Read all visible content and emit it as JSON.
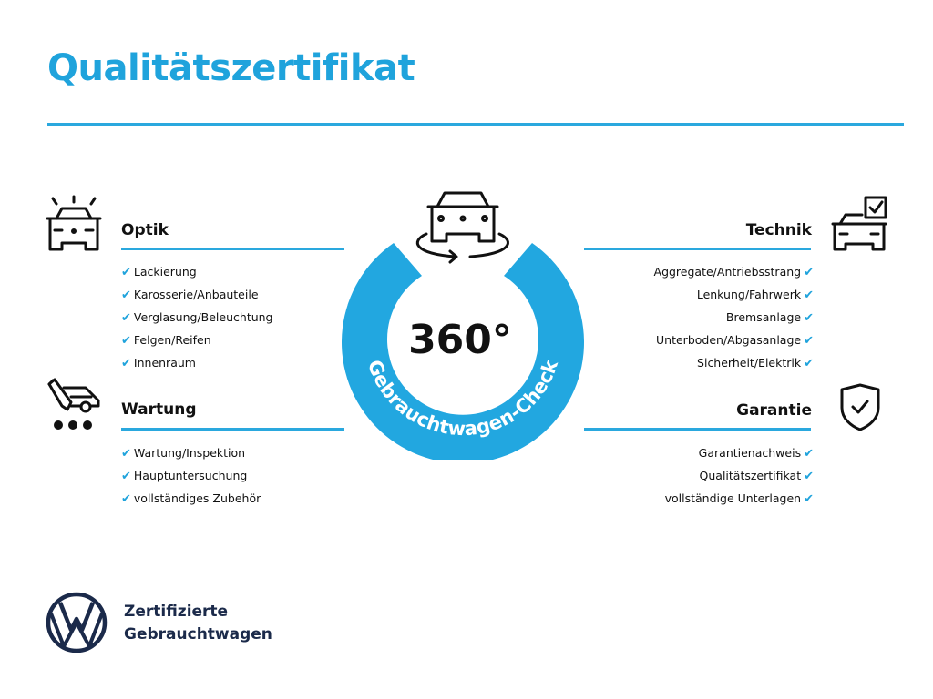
{
  "title": "Qualitätszertifikat",
  "badge": {
    "degrees": "360°",
    "label": "Gebrauchtwagen-Check",
    "color": "#22a7e0"
  },
  "sections": {
    "optik": {
      "title": "Optik",
      "icon": "car-lights-icon",
      "items": [
        "Lackierung",
        "Karosserie/Anbauteile",
        "Verglasung/Beleuchtung",
        "Felgen/Reifen",
        "Innenraum"
      ]
    },
    "wartung": {
      "title": "Wartung",
      "icon": "car-service-icon",
      "items": [
        "Wartung/Inspektion",
        "Hauptuntersuchung",
        "vollständiges Zubehör"
      ]
    },
    "technik": {
      "title": "Technik",
      "icon": "car-checkbox-icon",
      "items": [
        "Aggregate/Antriebsstrang",
        "Lenkung/Fahrwerk",
        "Bremsanlage",
        "Unterboden/Abgasanlage",
        "Sicherheit/Elektrik"
      ]
    },
    "garantie": {
      "title": "Garantie",
      "icon": "shield-check-icon",
      "items": [
        "Garantienachweis",
        "Qualitätszertifikat",
        "vollständige Unterlagen"
      ]
    }
  },
  "check_mark": "✔",
  "footer": {
    "line1": "Zertifizierte",
    "line2": "Gebrauchtwagen",
    "logo": "VW"
  }
}
